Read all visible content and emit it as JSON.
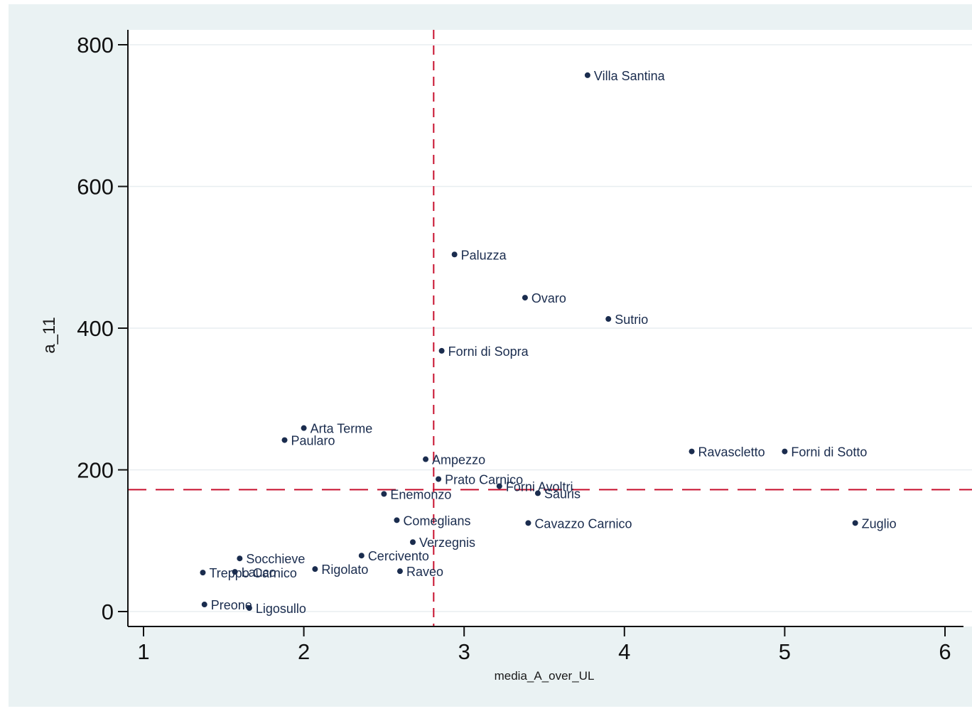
{
  "colors": {
    "background": "#eaf2f3",
    "plot_area": "#ffffff",
    "grid": "#e8eef0",
    "points": "#1a2c4e",
    "reference_lines": "#c8102e",
    "axis": "#111111"
  },
  "chart_data": {
    "type": "scatter",
    "title": "",
    "xlabel": "media_A_over_UL",
    "ylabel": "a_11",
    "xlim": [
      1,
      6
    ],
    "ylim": [
      0,
      800
    ],
    "xticks": [
      1,
      2,
      3,
      4,
      5,
      6
    ],
    "yticks": [
      0,
      200,
      400,
      600,
      800
    ],
    "grid": "horizontal",
    "reference_lines": {
      "x": 2.81,
      "y": 172
    },
    "points": [
      {
        "label": "Villa Santina",
        "x": 3.77,
        "y": 757
      },
      {
        "label": "Paluzza",
        "x": 2.94,
        "y": 504
      },
      {
        "label": "Ovaro",
        "x": 3.38,
        "y": 443
      },
      {
        "label": "Sutrio",
        "x": 3.9,
        "y": 413
      },
      {
        "label": "Forni di Sopra",
        "x": 2.86,
        "y": 368
      },
      {
        "label": "Arta Terme",
        "x": 2.0,
        "y": 259
      },
      {
        "label": "Paularo",
        "x": 1.88,
        "y": 242
      },
      {
        "label": "Ravascletto",
        "x": 4.42,
        "y": 226
      },
      {
        "label": "Forni di Sotto",
        "x": 5.0,
        "y": 226
      },
      {
        "label": "Ampezzo",
        "x": 2.76,
        "y": 215
      },
      {
        "label": "Prato Carnico",
        "x": 2.84,
        "y": 187
      },
      {
        "label": "Forni Avoltri",
        "x": 3.22,
        "y": 177
      },
      {
        "label": "Sauris",
        "x": 3.46,
        "y": 167
      },
      {
        "label": "Enemonzo",
        "x": 2.5,
        "y": 166
      },
      {
        "label": "Comeglians",
        "x": 2.58,
        "y": 129
      },
      {
        "label": "Cavazzo Carnico",
        "x": 3.4,
        "y": 125
      },
      {
        "label": "Zuglio",
        "x": 5.44,
        "y": 125
      },
      {
        "label": "Verzegnis",
        "x": 2.68,
        "y": 98
      },
      {
        "label": "Cercivento",
        "x": 2.36,
        "y": 79
      },
      {
        "label": "Socchieve",
        "x": 1.6,
        "y": 75
      },
      {
        "label": "Rigolato",
        "x": 2.07,
        "y": 60
      },
      {
        "label": "Raveo",
        "x": 2.6,
        "y": 57
      },
      {
        "label": "Lauco",
        "x": 1.57,
        "y": 56
      },
      {
        "label": "Treppo Carnico",
        "x": 1.37,
        "y": 55
      },
      {
        "label": "Preone",
        "x": 1.38,
        "y": 10
      },
      {
        "label": "Ligosullo",
        "x": 1.66,
        "y": 5
      }
    ]
  }
}
